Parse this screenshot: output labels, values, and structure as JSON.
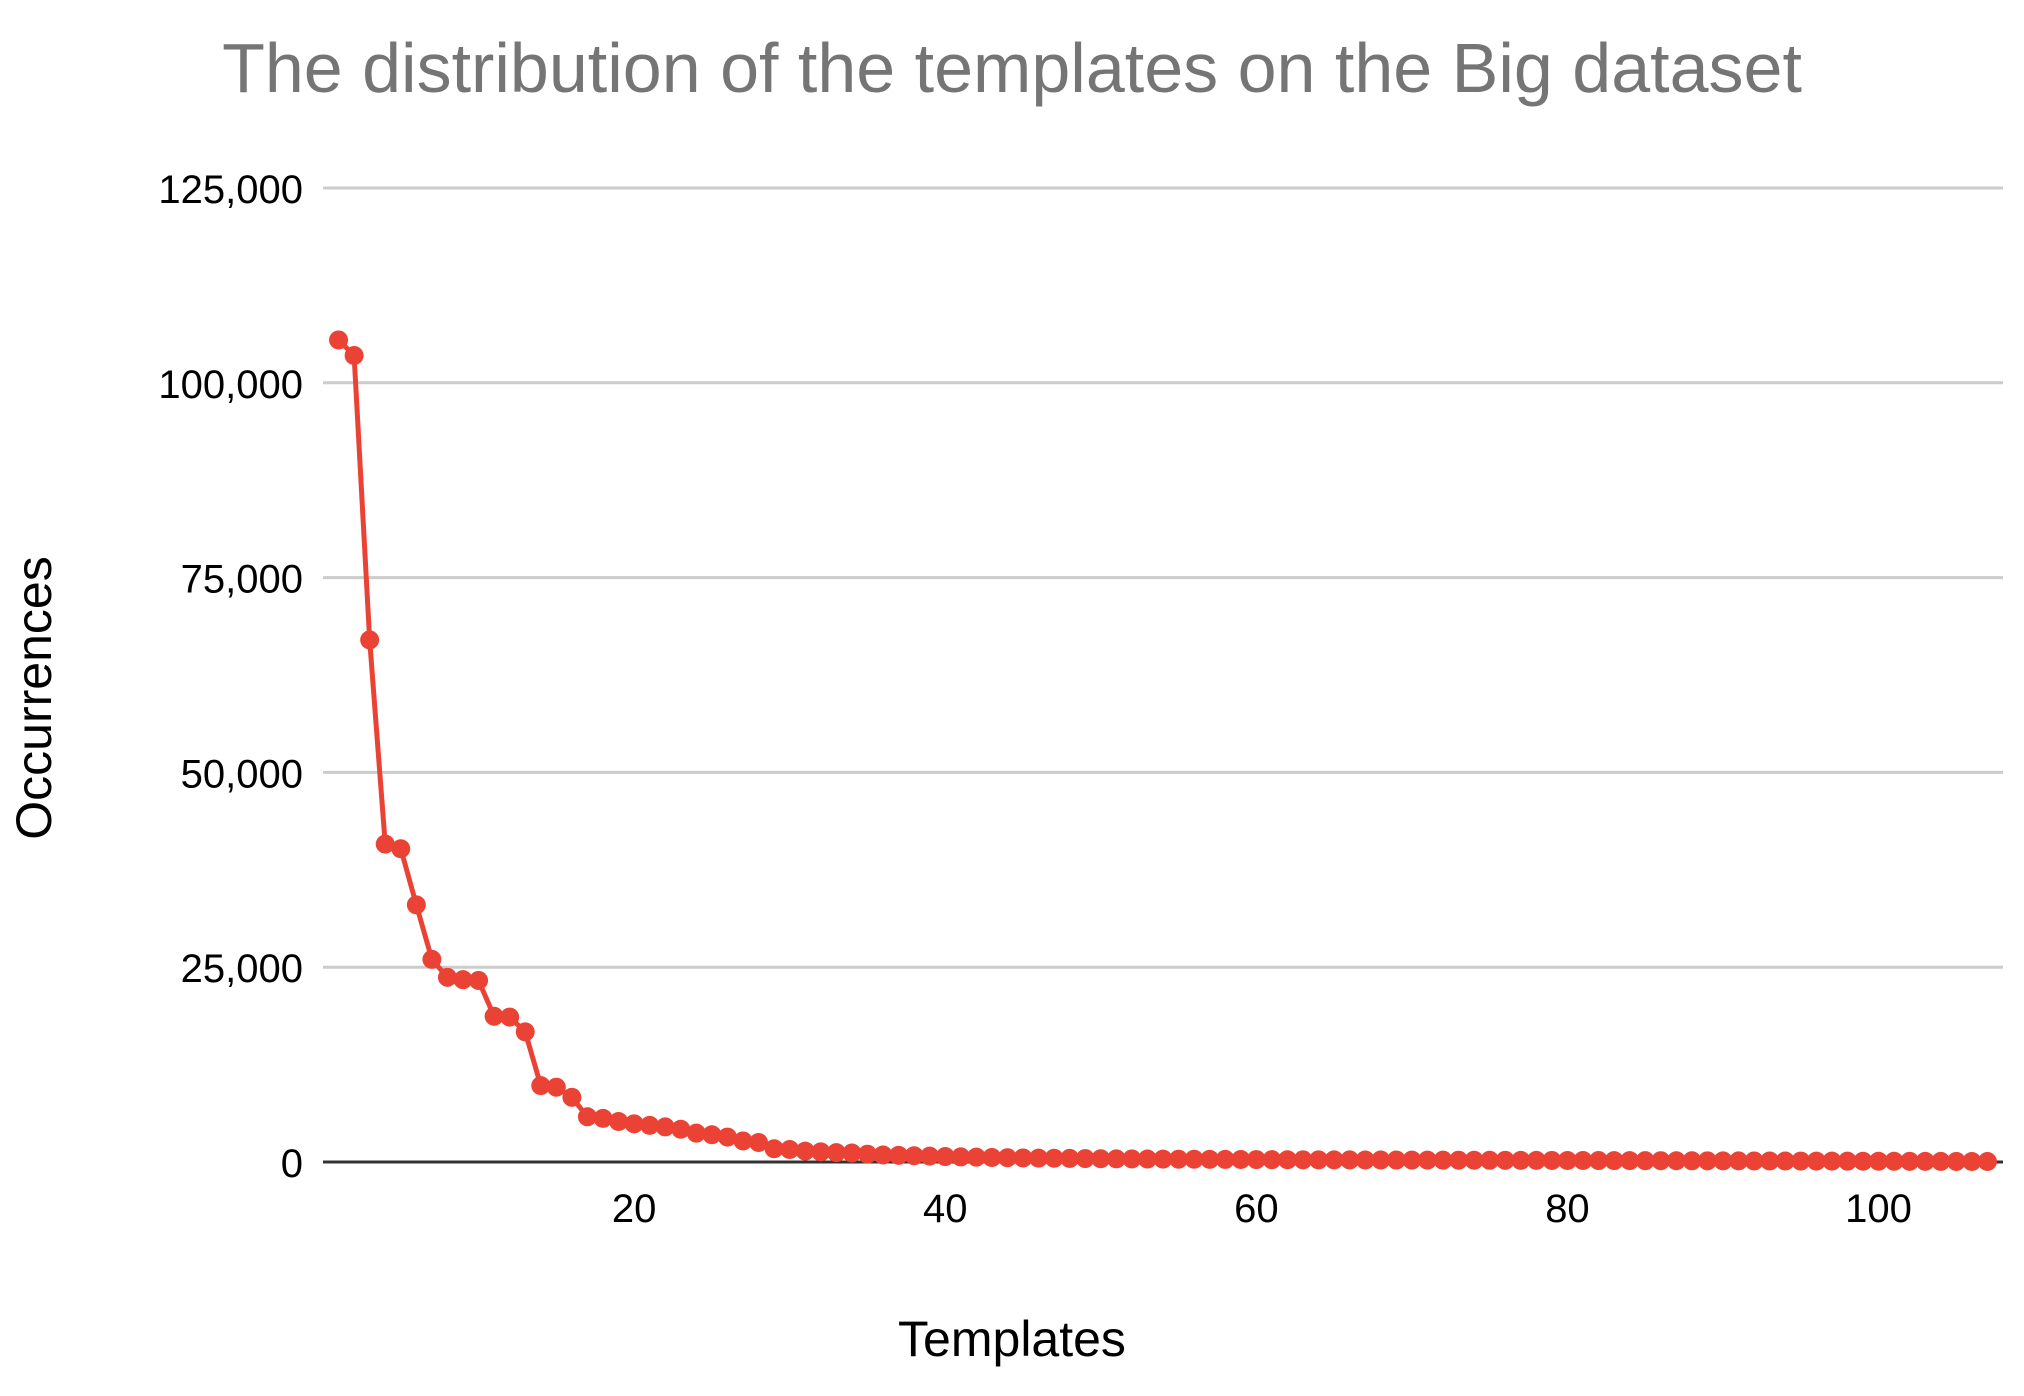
{
  "chart_data": {
    "type": "line",
    "title": "The distribution of the templates on the Big dataset",
    "xlabel": "Templates",
    "ylabel": "Occurrences",
    "xlim": [
      0,
      108
    ],
    "ylim": [
      0,
      125000
    ],
    "x_ticks": [
      20,
      40,
      60,
      80,
      100
    ],
    "y_ticks": [
      0,
      25000,
      50000,
      75000,
      100000,
      125000
    ],
    "y_tick_labels": [
      "0",
      "25,000",
      "50,000",
      "75,000",
      "100,000",
      "125,000"
    ],
    "grid": true,
    "legend": "none",
    "series": [
      {
        "color": "#ea4335",
        "x": [
          1,
          2,
          3,
          4,
          5,
          6,
          7,
          8,
          9,
          10,
          11,
          12,
          13,
          14,
          15,
          16,
          17,
          18,
          19,
          20,
          21,
          22,
          23,
          24,
          25,
          26,
          27,
          28,
          29,
          30,
          31,
          32,
          33,
          34,
          35,
          36,
          37,
          38,
          39,
          40,
          41,
          42,
          43,
          44,
          45,
          46,
          47,
          48,
          49,
          50,
          51,
          52,
          53,
          54,
          55,
          56,
          57,
          58,
          59,
          60,
          61,
          62,
          63,
          64,
          65,
          66,
          67,
          68,
          69,
          70,
          71,
          72,
          73,
          74,
          75,
          76,
          77,
          78,
          79,
          80,
          81,
          82,
          83,
          84,
          85,
          86,
          87,
          88,
          89,
          90,
          91,
          92,
          93,
          94,
          95,
          96,
          97,
          98,
          99,
          100,
          101,
          102,
          103,
          104,
          105,
          106,
          107
        ],
        "values": [
          105500,
          103500,
          67000,
          40800,
          40200,
          33000,
          26000,
          23700,
          23400,
          23300,
          18700,
          18600,
          16700,
          9800,
          9600,
          8300,
          5800,
          5600,
          5200,
          4900,
          4700,
          4500,
          4200,
          3700,
          3500,
          3200,
          2700,
          2500,
          1700,
          1600,
          1400,
          1300,
          1200,
          1150,
          1000,
          900,
          850,
          800,
          750,
          700,
          650,
          620,
          580,
          550,
          520,
          500,
          480,
          460,
          440,
          420,
          400,
          390,
          380,
          370,
          360,
          350,
          340,
          330,
          320,
          310,
          300,
          290,
          280,
          275,
          270,
          265,
          260,
          255,
          250,
          245,
          240,
          235,
          230,
          225,
          220,
          215,
          210,
          205,
          200,
          195,
          190,
          185,
          180,
          175,
          170,
          165,
          160,
          155,
          150,
          145,
          140,
          135,
          130,
          125,
          120,
          115,
          110,
          105,
          100,
          95,
          90,
          85,
          80,
          75,
          70,
          65,
          60
        ]
      }
    ]
  }
}
